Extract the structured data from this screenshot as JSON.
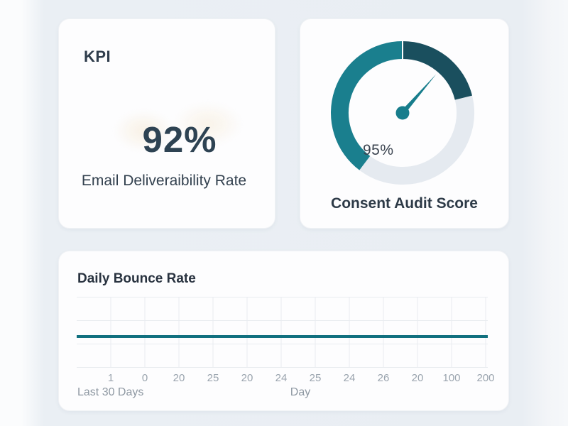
{
  "kpi_card": {
    "title": "KPI",
    "value": "92%",
    "label": "Email Deliveraibility Rate"
  },
  "gauge_card": {
    "title": "Consent Audit Score",
    "value_label": "95%",
    "colors": {
      "primary": "#1a7f8e",
      "dark": "#1a4f5e",
      "track": "#e5eaf0",
      "needle": "#177d8c"
    },
    "segments": [
      {
        "color_key": "track",
        "start_deg": 76,
        "end_deg": 217
      },
      {
        "color_key": "primary",
        "start_deg": 217,
        "end_deg": 360
      },
      {
        "color_key": "dark",
        "start_deg": 0,
        "end_deg": 76
      }
    ],
    "needle": {
      "angle_deg": 41,
      "length": 72
    }
  },
  "chart_data": {
    "type": "line",
    "title": "Daily Bounce Rate",
    "xlabel": "Day",
    "footer_left": "Last 30 Days",
    "x_tick_labels": [
      "1",
      "0",
      "20",
      "25",
      "20",
      "24",
      "25",
      "24",
      "26",
      "20",
      "100",
      "200"
    ],
    "y_axis_labels_visible": false,
    "grid": {
      "visible": true,
      "h_lines": 4,
      "v_lines_at_ticks": true,
      "color": "#e9ecf0"
    },
    "series": [
      {
        "name": "Daily Bounce Rate",
        "shape": "flat",
        "y_fraction_from_bottom": 0.44
      }
    ],
    "line_color": "#11707f"
  }
}
